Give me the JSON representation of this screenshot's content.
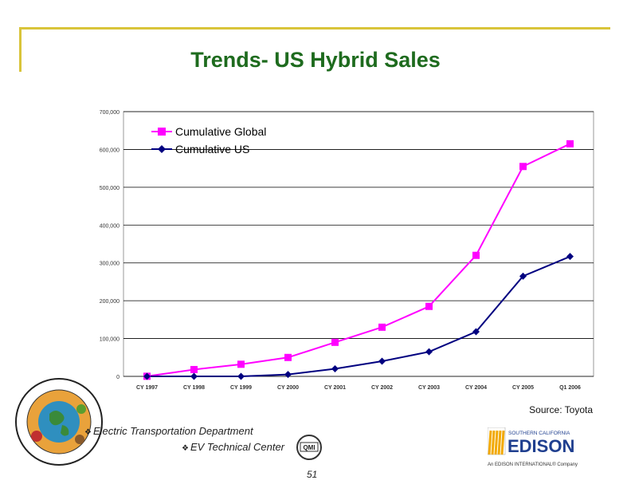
{
  "slide": {
    "title": "Trends- US Hybrid Sales",
    "source": "Source: Toyota",
    "bullet_icon": "diamond-bullet-icon",
    "dept_line": "Electric Transportation Department",
    "center_line": "EV Technical Center",
    "page_number": "51"
  },
  "logos": {
    "qmi_text": "QMI",
    "edison_top": "SOUTHERN CALIFORNIA",
    "edison_name": "EDISON",
    "edison_bottom": "An EDISON INTERNATIONAL® Company",
    "seal_text": "COMMITTED TO SUSTAINING OUR TRANSPORTATION FUTURE"
  },
  "colors": {
    "title": "#1e6b1e",
    "global_series": "#ff00ff",
    "us_series": "#000080",
    "frame": "#d9c43a",
    "plot_bg": "#ffffff",
    "edison_orange": "#f2a900",
    "edison_blue": "#1f3f8f"
  },
  "chart_data": {
    "type": "line",
    "categories": [
      "CY 1997",
      "CY 1998",
      "CY 1999",
      "CY 2000",
      "CY 2001",
      "CY 2002",
      "CY 2003",
      "CY 2004",
      "CY 2005",
      "Q1 2006"
    ],
    "series": [
      {
        "name": "Cumulative Global",
        "color": "#ff00ff",
        "marker": "square",
        "values": [
          300,
          18000,
          32000,
          50000,
          90000,
          130000,
          185000,
          320000,
          555000,
          615000
        ]
      },
      {
        "name": "Cumulative US",
        "color": "#000080",
        "marker": "diamond",
        "values": [
          0,
          0,
          0,
          5000,
          20000,
          40000,
          65000,
          118000,
          265000,
          317000
        ]
      }
    ],
    "ylim": [
      0,
      700000
    ],
    "yticks": [
      "0",
      "100,000",
      "200,000",
      "300,000",
      "400,000",
      "500,000",
      "600,000",
      "700,000"
    ],
    "grid": true,
    "legend_position": "top-left"
  }
}
